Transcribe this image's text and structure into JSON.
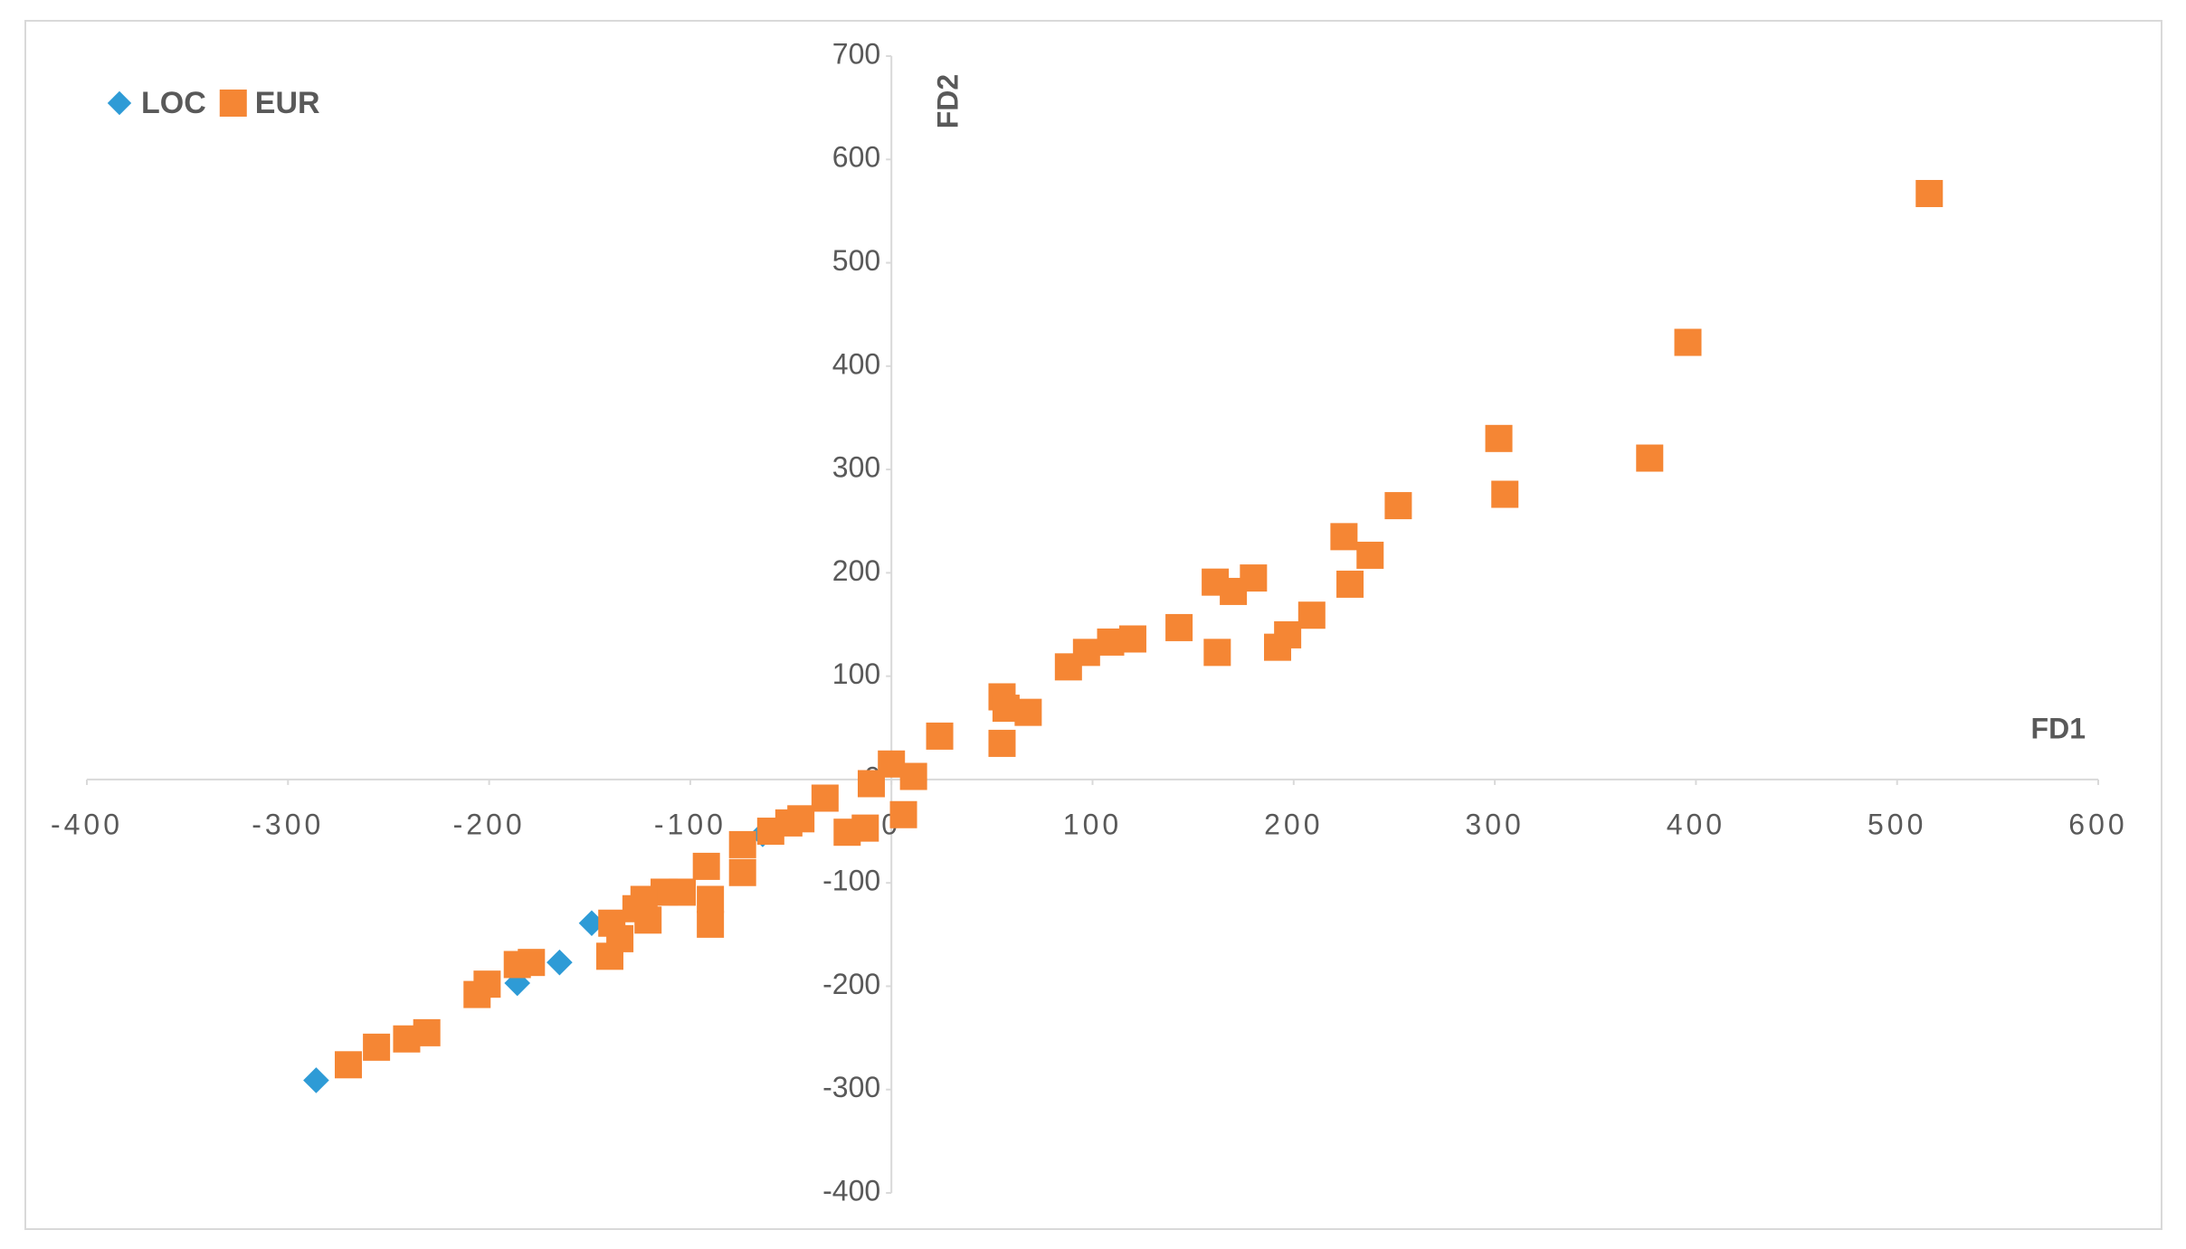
{
  "chart_data": {
    "type": "scatter",
    "x_label": "FD1",
    "y_label": "FD2",
    "xlim": [
      -400,
      600
    ],
    "ylim": [
      -400,
      700
    ],
    "xticks": [
      -400,
      -300,
      -200,
      -100,
      0,
      100,
      200,
      300,
      400,
      500,
      600
    ],
    "yticks": [
      -400,
      -300,
      -200,
      -100,
      0,
      100,
      200,
      300,
      400,
      500,
      600,
      700
    ],
    "legend": "top-left",
    "series": [
      {
        "name": "LOC",
        "color": "#2e9bd6",
        "marker": "diamond",
        "x": [
          -286,
          -186,
          -165,
          -149,
          -64
        ],
        "values": [
          -291,
          -197,
          -177,
          -139,
          -53
        ]
      },
      {
        "name": "EUR",
        "color": "#f58634",
        "marker": "square",
        "x": [
          516,
          396,
          302,
          377,
          305,
          252,
          225,
          238,
          228,
          180,
          161,
          170,
          209,
          197,
          192,
          162,
          143,
          120,
          109,
          97,
          88,
          68,
          55,
          57,
          55,
          24,
          0,
          11,
          -10,
          6,
          -13,
          -22,
          -33,
          -45,
          -51,
          -60,
          -74,
          -74,
          -92,
          -90,
          -90,
          -104,
          -113,
          -123,
          -127,
          -121,
          -139,
          -135,
          -140,
          -179,
          -186,
          -201,
          -206,
          -231,
          -241,
          -256,
          -270
        ],
        "values": [
          567,
          423,
          330,
          311,
          276,
          265,
          235,
          217,
          189,
          195,
          191,
          182,
          159,
          140,
          128,
          123,
          147,
          136,
          133,
          123,
          109,
          65,
          80,
          69,
          35,
          42,
          15,
          3,
          -4,
          -34,
          -47,
          -51,
          -18,
          -38,
          -42,
          -50,
          -63,
          -90,
          -84,
          -116,
          -140,
          -109,
          -109,
          -116,
          -125,
          -136,
          -139,
          -154,
          -171,
          -177,
          -179,
          -198,
          -208,
          -245,
          -251,
          -259,
          -276
        ]
      }
    ]
  }
}
